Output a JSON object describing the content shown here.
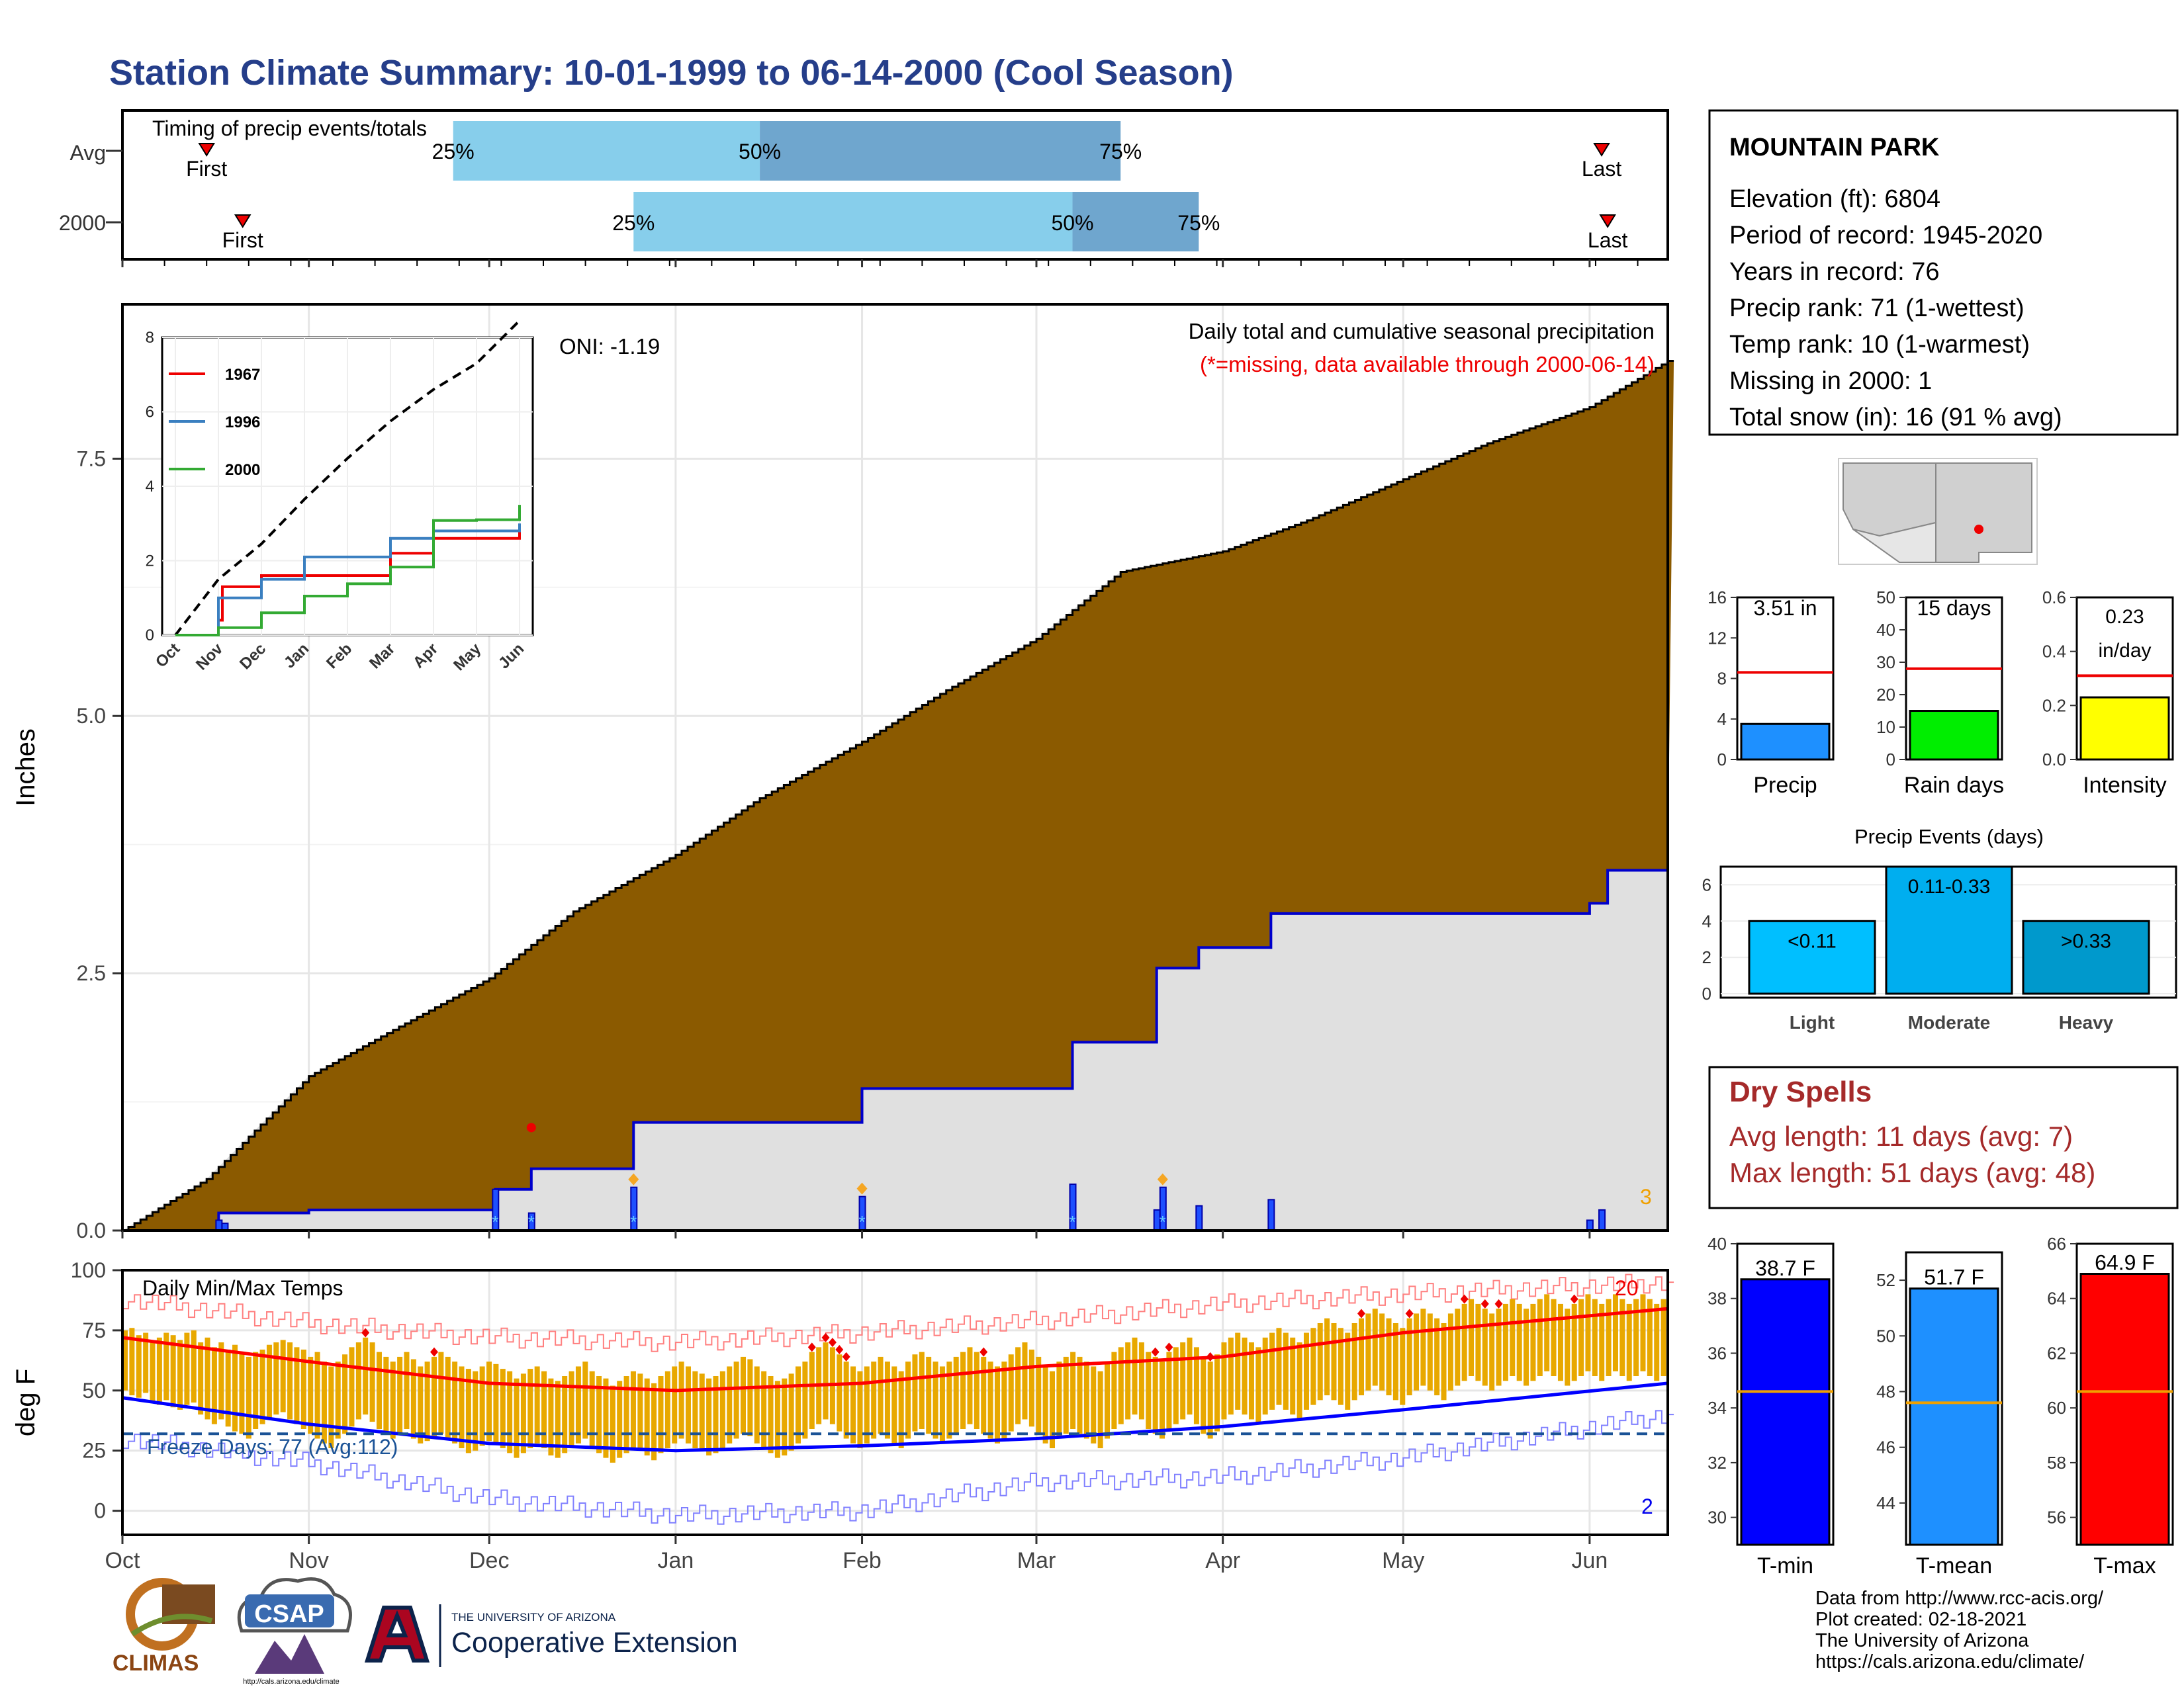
{
  "title": "Station Climate Summary: 10-01-1999 to 06-14-2000 (Cool Season)",
  "timing": {
    "label": "Timing of precip events/totals",
    "rows": [
      "Avg",
      "2000"
    ],
    "first_label": "First",
    "last_label": "Last",
    "pct_labels": [
      "25%",
      "50%",
      "75%"
    ]
  },
  "main": {
    "ylabel": "Inches",
    "oni": "ONI: -1.19",
    "note1": "Daily total and cumulative seasonal precipitation",
    "note2": "(*=missing, data available through 2000-06-14)",
    "count_label": "3"
  },
  "temp": {
    "ylabel": "deg F",
    "panel_label": "Daily Min/Max Temps",
    "freeze_label": "Freeze Days: 77 (Avg:112)",
    "count_hi": "20",
    "count_lo": "2"
  },
  "months": [
    "Oct",
    "Nov",
    "Dec",
    "Jan",
    "Feb",
    "Mar",
    "Apr",
    "May",
    "Jun"
  ],
  "station": {
    "name": "MOUNTAIN PARK",
    "lines": [
      "Elevation (ft): 6804",
      "Period of record: 1945-2020",
      "Years in record: 76",
      "Precip rank: 71 (1-wettest)",
      "Temp rank: 10 (1-warmest)",
      "Missing in 2000: 1",
      "Total snow (in): 16 (91 % avg)"
    ]
  },
  "dry_spells": {
    "title": "Dry Spells",
    "avg": "Avg length: 11 days (avg: 7)",
    "max": "Max length: 51 days (avg: 48)"
  },
  "precip_events": {
    "title": "Precip Events (days)"
  },
  "credits": {
    "line1": "Data from http://www.rcc-acis.org/",
    "line2": "Plot created: 02-18-2021",
    "line3": "The University of Arizona",
    "line4": "https://cals.arizona.edu/climate/"
  },
  "logos": {
    "climas": "CLIMAS",
    "csap": "CSAP",
    "csap_url": "http://cals.arizona.edu/climate",
    "ua_small": "THE UNIVERSITY OF ARIZONA",
    "ua_big": "Cooperative Extension"
  },
  "colors": {
    "cumulative_fill": "#8B5A00",
    "current_line": "#0000CC",
    "bg_fill": "#E0E0E0",
    "tmax_line": "#FF0000",
    "tmin_line": "#0000FF",
    "temp_bar": "#E8A800",
    "title": "#253E8A",
    "dry": "#A52A2A"
  },
  "chart_data": [
    {
      "type": "bar",
      "name": "timing",
      "rows": [
        {
          "label": "Avg",
          "first": "1999-10-15",
          "q25": "1999-11-25",
          "q50": "2000-01-15",
          "q75": "2000-03-15",
          "last": "2000-06-03"
        },
        {
          "label": "2000",
          "first": "1999-10-21",
          "q25": "1999-12-25",
          "q50": "2000-03-07",
          "q75": "2000-03-28",
          "last": "2000-06-04"
        }
      ]
    },
    {
      "type": "area",
      "name": "cumulative_precip",
      "ylabel": "Inches",
      "ylim": [
        0,
        9.0
      ],
      "yticks": [
        0.0,
        2.5,
        5.0,
        7.5
      ],
      "avg_cumulative": [
        [
          "1999-10-01",
          0.0
        ],
        [
          "1999-10-15",
          0.5
        ],
        [
          "1999-11-01",
          1.5
        ],
        [
          "1999-11-15",
          1.95
        ],
        [
          "1999-12-01",
          2.45
        ],
        [
          "1999-12-15",
          3.1
        ],
        [
          "2000-01-01",
          3.65
        ],
        [
          "2000-01-15",
          4.2
        ],
        [
          "2000-02-01",
          4.75
        ],
        [
          "2000-02-15",
          5.25
        ],
        [
          "2000-03-01",
          5.75
        ],
        [
          "2000-03-15",
          6.4
        ],
        [
          "2000-04-01",
          6.6
        ],
        [
          "2000-04-15",
          6.9
        ],
        [
          "2000-05-01",
          7.3
        ],
        [
          "2000-05-15",
          7.65
        ],
        [
          "2000-06-01",
          8.0
        ],
        [
          "2000-06-14",
          8.45
        ]
      ],
      "current_cumulative": [
        [
          "1999-10-01",
          0.0
        ],
        [
          "1999-10-17",
          0.17
        ],
        [
          "1999-11-01",
          0.2
        ],
        [
          "1999-12-01",
          0.2
        ],
        [
          "1999-12-02",
          0.4
        ],
        [
          "1999-12-08",
          0.6
        ],
        [
          "1999-12-25",
          1.05
        ],
        [
          "2000-02-01",
          1.38
        ],
        [
          "2000-03-07",
          1.83
        ],
        [
          "2000-03-21",
          2.55
        ],
        [
          "2000-03-28",
          2.75
        ],
        [
          "2000-04-09",
          3.08
        ],
        [
          "2000-06-01",
          3.18
        ],
        [
          "2000-06-04",
          3.5
        ],
        [
          "2000-06-14",
          3.5
        ]
      ],
      "daily_bars": [
        [
          "1999-10-17",
          0.1
        ],
        [
          "1999-10-18",
          0.07
        ],
        [
          "1999-12-02",
          0.4
        ],
        [
          "1999-12-08",
          0.17
        ],
        [
          "1999-12-25",
          0.42
        ],
        [
          "2000-02-01",
          0.33
        ],
        [
          "2000-03-07",
          0.45
        ],
        [
          "2000-03-21",
          0.2
        ],
        [
          "2000-03-22",
          0.42
        ],
        [
          "2000-03-28",
          0.24
        ],
        [
          "2000-04-09",
          0.3
        ],
        [
          "2000-06-01",
          0.1
        ],
        [
          "2000-06-03",
          0.2
        ]
      ]
    },
    {
      "type": "line",
      "name": "inset_cumulative",
      "ylim": [
        0,
        8
      ],
      "yticks": [
        0,
        2,
        4,
        6,
        8
      ],
      "series": [
        {
          "name": "1967",
          "color": "#EE0000",
          "values": [
            [
              "Oct",
              0
            ],
            [
              "Nov",
              0.4
            ],
            [
              "Nov",
              1.3
            ],
            [
              "Dec",
              1.6
            ],
            [
              "Jan",
              1.6
            ],
            [
              "Feb",
              1.6
            ],
            [
              "Mar",
              2.2
            ],
            [
              "Apr",
              2.6
            ],
            [
              "May",
              2.6
            ],
            [
              "Jun",
              2.9
            ]
          ]
        },
        {
          "name": "1996",
          "color": "#3A7FC0",
          "values": [
            [
              "Oct",
              0
            ],
            [
              "Nov",
              1.0
            ],
            [
              "Dec",
              1.5
            ],
            [
              "Jan",
              2.1
            ],
            [
              "Feb",
              2.1
            ],
            [
              "Mar",
              2.6
            ],
            [
              "Apr",
              2.8
            ],
            [
              "May",
              2.8
            ],
            [
              "Jun",
              3.0
            ]
          ]
        },
        {
          "name": "2000",
          "color": "#33AA33",
          "values": [
            [
              "Oct",
              0
            ],
            [
              "Nov",
              0.2
            ],
            [
              "Dec",
              0.6
            ],
            [
              "Jan",
              1.05
            ],
            [
              "Feb",
              1.38
            ],
            [
              "Mar",
              1.83
            ],
            [
              "Apr",
              3.08
            ],
            [
              "May",
              3.1
            ],
            [
              "Jun",
              3.5
            ]
          ]
        }
      ],
      "average": [
        0,
        1.5,
        2.45,
        3.65,
        4.75,
        5.75,
        6.6,
        7.3,
        8.45
      ]
    },
    {
      "type": "line",
      "name": "daily_temps",
      "ylabel": "deg F",
      "ylim": [
        -10,
        100
      ],
      "yticks": [
        0,
        25,
        50,
        75,
        100
      ],
      "freeze_line": 32,
      "avg_tmax": [
        [
          "1999-10-01",
          72
        ],
        [
          "1999-11-01",
          62
        ],
        [
          "1999-12-01",
          53
        ],
        [
          "2000-01-01",
          50
        ],
        [
          "2000-02-01",
          53
        ],
        [
          "2000-03-01",
          60
        ],
        [
          "2000-04-01",
          64
        ],
        [
          "2000-05-01",
          74
        ],
        [
          "2000-06-14",
          84
        ]
      ],
      "avg_tmin": [
        [
          "1999-10-01",
          47
        ],
        [
          "1999-11-01",
          36
        ],
        [
          "1999-12-01",
          28
        ],
        [
          "2000-01-01",
          25
        ],
        [
          "2000-02-01",
          27
        ],
        [
          "2000-03-01",
          30
        ],
        [
          "2000-04-01",
          35
        ],
        [
          "2000-05-01",
          42
        ],
        [
          "2000-06-14",
          53
        ]
      ],
      "rec_high": [
        [
          "1999-10-01",
          88
        ],
        [
          "1999-11-01",
          78
        ],
        [
          "1999-12-01",
          72
        ],
        [
          "2000-01-01",
          70
        ],
        [
          "2000-02-01",
          74
        ],
        [
          "2000-03-01",
          79
        ],
        [
          "2000-04-01",
          86
        ],
        [
          "2000-05-01",
          90
        ],
        [
          "2000-06-14",
          95
        ]
      ],
      "rec_low": [
        [
          "1999-10-01",
          30
        ],
        [
          "1999-11-01",
          20
        ],
        [
          "1999-12-01",
          5
        ],
        [
          "2000-01-01",
          -2
        ],
        [
          "2000-02-01",
          0
        ],
        [
          "2000-03-01",
          12
        ],
        [
          "2000-04-01",
          14
        ],
        [
          "2000-05-01",
          22
        ],
        [
          "2000-06-14",
          40
        ]
      ],
      "daily_tmax": [
        75,
        76,
        73,
        74,
        70,
        72,
        74,
        73,
        71,
        74,
        75,
        70,
        72,
        68,
        70,
        67,
        69,
        66,
        64,
        66,
        67,
        69,
        70,
        71,
        70,
        68,
        67,
        64,
        66,
        62,
        60,
        62,
        65,
        68,
        70,
        72,
        70,
        66,
        64,
        62,
        64,
        66,
        63,
        60,
        62,
        64,
        66,
        64,
        62,
        60,
        59,
        58,
        60,
        62,
        61,
        59,
        58,
        55,
        57,
        59,
        60,
        58,
        55,
        54,
        56,
        58,
        60,
        62,
        58,
        56,
        55,
        52,
        54,
        56,
        58,
        57,
        55,
        53,
        56,
        58,
        60,
        62,
        60,
        58,
        57,
        55,
        56,
        58,
        60,
        62,
        64,
        63,
        60,
        58,
        56,
        54,
        55,
        57,
        60,
        62,
        66,
        68,
        70,
        68,
        65,
        62,
        60,
        58,
        60,
        62,
        64,
        62,
        60,
        58,
        62,
        65,
        66,
        64,
        62,
        60,
        62,
        64,
        66,
        68,
        66,
        64,
        62,
        60,
        62,
        65,
        68,
        70,
        67,
        64,
        60,
        58,
        62,
        64,
        66,
        64,
        62,
        60,
        58,
        62,
        66,
        68,
        70,
        72,
        70,
        66,
        64,
        62,
        66,
        68,
        70,
        72,
        68,
        64,
        62,
        65,
        70,
        72,
        74,
        72,
        70,
        68,
        72,
        74,
        76,
        74,
        72,
        70,
        74,
        76,
        78,
        80,
        78,
        76,
        74,
        78,
        80,
        82,
        84,
        82,
        80,
        78,
        76,
        80,
        82,
        84,
        82,
        80,
        78,
        82,
        84,
        86,
        88,
        86,
        84,
        82,
        84,
        86,
        88,
        86,
        84,
        86,
        88,
        90,
        88,
        86,
        84,
        86,
        88,
        90,
        88,
        86,
        88,
        90,
        88,
        86,
        88,
        90,
        88,
        86,
        88
      ],
      "daily_tmin": [
        50,
        48,
        47,
        49,
        45,
        44,
        46,
        43,
        42,
        44,
        45,
        40,
        38,
        36,
        38,
        35,
        33,
        32,
        30,
        34,
        36,
        38,
        40,
        41,
        38,
        36,
        34,
        32,
        30,
        28,
        26,
        30,
        32,
        35,
        38,
        40,
        37,
        34,
        32,
        30,
        32,
        34,
        30,
        28,
        29,
        30,
        32,
        30,
        28,
        26,
        24,
        25,
        27,
        29,
        28,
        26,
        24,
        22,
        24,
        26,
        28,
        26,
        23,
        22,
        24,
        26,
        28,
        30,
        26,
        24,
        22,
        20,
        22,
        24,
        26,
        25,
        23,
        21,
        24,
        26,
        28,
        30,
        28,
        26,
        25,
        23,
        24,
        26,
        28,
        30,
        32,
        31,
        28,
        26,
        24,
        22,
        23,
        25,
        28,
        30,
        34,
        36,
        38,
        36,
        33,
        30,
        28,
        26,
        28,
        30,
        32,
        30,
        28,
        26,
        30,
        33,
        34,
        32,
        30,
        28,
        30,
        32,
        34,
        36,
        34,
        32,
        30,
        28,
        30,
        33,
        36,
        38,
        35,
        32,
        28,
        26,
        30,
        32,
        34,
        32,
        30,
        28,
        26,
        30,
        34,
        36,
        38,
        40,
        38,
        34,
        32,
        30,
        34,
        36,
        38,
        40,
        36,
        32,
        30,
        33,
        38,
        40,
        42,
        40,
        38,
        36,
        40,
        42,
        44,
        42,
        40,
        38,
        42,
        44,
        46,
        48,
        46,
        44,
        42,
        46,
        48,
        50,
        52,
        50,
        48,
        46,
        44,
        48,
        50,
        52,
        50,
        48,
        46,
        50,
        52,
        54,
        56,
        54,
        52,
        50,
        52,
        54,
        56,
        54,
        52,
        54,
        56,
        58,
        56,
        54,
        52,
        54,
        56,
        58,
        56,
        54,
        56,
        58,
        56,
        54,
        56,
        58,
        56,
        54,
        56
      ]
    },
    {
      "type": "bar",
      "name": "season_totals",
      "categories": [
        "Precip",
        "Rain days",
        "Intensity"
      ],
      "values": [
        3.51,
        15,
        0.23
      ],
      "averages": [
        8.6,
        28,
        0.31
      ],
      "labels": [
        "3.51 in",
        "15 days",
        "0.23 in/day"
      ],
      "ylims": [
        [
          0,
          16
        ],
        [
          0,
          50
        ],
        [
          0,
          0.6
        ]
      ],
      "yticks": [
        [
          0,
          4,
          8,
          12,
          16
        ],
        [
          0,
          10,
          20,
          30,
          40,
          50
        ],
        [
          0.0,
          0.2,
          0.4,
          0.6
        ]
      ],
      "colors": [
        "#1E90FF",
        "#00EE00",
        "#FFFF00"
      ]
    },
    {
      "type": "bar",
      "name": "precip_events",
      "title": "Precip Events (days)",
      "categories": [
        "Light",
        "Moderate",
        "Heavy"
      ],
      "values": [
        4,
        7,
        4
      ],
      "labels": [
        "<0.11",
        "0.11-0.33",
        ">0.33"
      ],
      "ylim": [
        0,
        7
      ],
      "yticks": [
        0,
        2,
        4,
        6
      ],
      "colors": [
        "#00BFFF",
        "#00AEEF",
        "#0099CC"
      ]
    },
    {
      "type": "bar",
      "name": "temp_means",
      "categories": [
        "T-min",
        "T-mean",
        "T-max"
      ],
      "values": [
        38.7,
        51.7,
        64.9
      ],
      "averages": [
        34.6,
        47.6,
        60.6
      ],
      "labels": [
        "38.7 F",
        "51.7 F",
        "64.9 F"
      ],
      "ylims": [
        [
          29,
          40
        ],
        [
          42.5,
          53
        ],
        [
          55,
          66
        ]
      ],
      "yticks": [
        [
          30,
          32,
          34,
          36,
          38,
          40
        ],
        [
          44,
          46,
          48,
          50,
          52
        ],
        [
          56,
          58,
          60,
          62,
          64,
          66
        ]
      ],
      "colors": [
        "#0000FF",
        "#1E90FF",
        "#FF0000"
      ]
    }
  ]
}
